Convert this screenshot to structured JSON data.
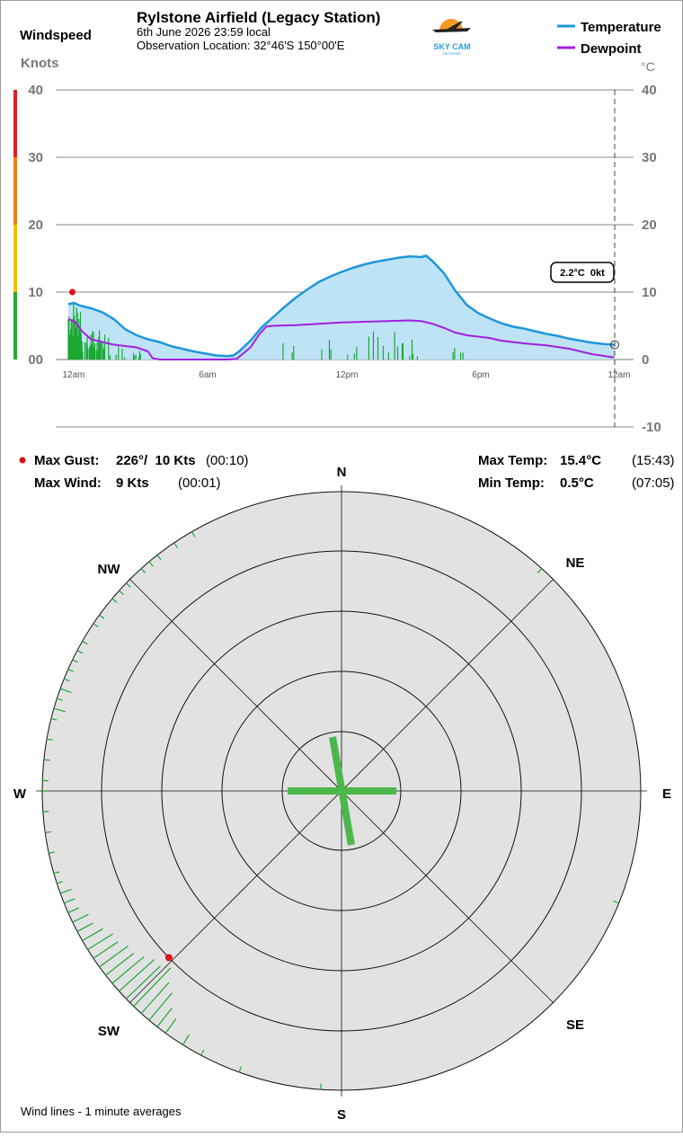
{
  "header": {
    "title": "Rylstone Airfield (Legacy Station)",
    "datetime": "6th June 2026  23:59 local",
    "location": "Observation Location: 32°46'S 150°00'E",
    "windspeed_label": "Windspeed",
    "knots_label": "Knots",
    "celsius_label": "°C"
  },
  "logo": {
    "text": "SKY CAM",
    "subtext": "NETWORK"
  },
  "legend": {
    "temperature": "Temperature",
    "dewpoint": "Dewpoint"
  },
  "colors": {
    "temperature": "#1e96dc",
    "dewpoint": "#a020e0",
    "temp_fill": "#bfe3f6",
    "wind": "#1aa832",
    "gust": "#dd1111",
    "scale_green": "#22aa33",
    "scale_yellow": "#f2c100",
    "scale_orange": "#ef7f1a",
    "scale_red": "#dd2222"
  },
  "chart_data": {
    "type": "line",
    "x_ticks": [
      "12am",
      "6am",
      "12pm",
      "6pm",
      "12am"
    ],
    "y_left_ticks": [
      "40",
      "30",
      "20",
      "10",
      "00"
    ],
    "y_right_ticks": [
      "40",
      "30",
      "20",
      "10",
      "0",
      "-10"
    ],
    "ylim": [
      -10,
      40
    ],
    "current_label": "2.2°C  0kt",
    "series": [
      {
        "name": "Temperature",
        "x": [
          0,
          0.25,
          0.5,
          1,
          1.5,
          2,
          2.5,
          3,
          3.5,
          4,
          4.5,
          5,
          5.5,
          6,
          6.5,
          7,
          7.25,
          7.5,
          8,
          8.5,
          9,
          9.5,
          10,
          10.5,
          11,
          11.5,
          12,
          12.5,
          13,
          13.5,
          14,
          14.5,
          15,
          15.5,
          15.72,
          16,
          16.5,
          17,
          17.5,
          18,
          18.5,
          19,
          19.5,
          20,
          20.5,
          21,
          21.5,
          22,
          22.5,
          23,
          23.5,
          23.98
        ],
        "y": [
          8.2,
          8.4,
          8.0,
          7.6,
          7.0,
          6.0,
          4.5,
          3.6,
          3.0,
          2.6,
          2.0,
          1.6,
          1.2,
          0.9,
          0.6,
          0.5,
          0.6,
          1.2,
          2.8,
          4.8,
          6.3,
          7.8,
          9.2,
          10.4,
          11.5,
          12.3,
          13.0,
          13.6,
          14.1,
          14.5,
          14.8,
          15.1,
          15.3,
          15.2,
          15.4,
          14.6,
          12.8,
          10.2,
          8.1,
          6.9,
          6.1,
          5.4,
          4.9,
          4.6,
          4.2,
          3.8,
          3.5,
          3.1,
          2.8,
          2.5,
          2.3,
          2.2
        ]
      },
      {
        "name": "Dewpoint",
        "x": [
          0,
          0.3,
          0.6,
          1,
          1.5,
          2,
          2.5,
          3,
          3.5,
          3.7,
          4,
          5,
          6,
          7,
          7.4,
          8,
          8.4,
          8.7,
          9,
          10,
          11,
          11.5,
          12,
          13,
          14,
          15,
          15.5,
          16,
          16.5,
          17,
          17.5,
          18,
          18.5,
          19,
          20,
          21,
          22,
          23,
          23.98
        ],
        "y": [
          6.0,
          5.6,
          4.2,
          3.0,
          2.6,
          2.2,
          2.0,
          1.8,
          1.2,
          0.2,
          0.0,
          0.0,
          0.0,
          0.0,
          0.1,
          1.8,
          3.8,
          4.9,
          5.0,
          5.1,
          5.3,
          5.4,
          5.5,
          5.6,
          5.7,
          5.8,
          5.7,
          5.3,
          4.7,
          4.0,
          3.6,
          3.4,
          3.2,
          2.8,
          2.4,
          2.1,
          1.6,
          0.8,
          0.3
        ]
      }
    ]
  },
  "stats": {
    "max_gust_label": "Max Gust:",
    "max_gust_value": "226°/  10 Kts",
    "max_gust_time": "(00:10)",
    "max_wind_label": "Max Wind:",
    "max_wind_value": "9 Kts",
    "max_wind_time": "(00:01)",
    "max_temp_label": "Max Temp:",
    "max_temp_value": "15.4°C",
    "max_temp_time": "(15:43)",
    "min_temp_label": "Min Temp:",
    "min_temp_value": "0.5°C",
    "min_temp_time": "(07:05)"
  },
  "rose": {
    "directions": {
      "n": "N",
      "ne": "NE",
      "e": "E",
      "se": "SE",
      "s": "S",
      "sw": "SW",
      "w": "W",
      "nw": "NW"
    },
    "calm_cross": true,
    "max_gust": {
      "direction_deg": 226,
      "speed_kt": 10
    },
    "wind_lines": [
      {
        "dir": 224,
        "kt": 9
      },
      {
        "dir": 226,
        "kt": 8
      },
      {
        "dir": 228,
        "kt": 8
      },
      {
        "dir": 222,
        "kt": 7
      },
      {
        "dir": 230,
        "kt": 7
      },
      {
        "dir": 232,
        "kt": 6
      },
      {
        "dir": 234,
        "kt": 6
      },
      {
        "dir": 220,
        "kt": 6
      },
      {
        "dir": 236,
        "kt": 5
      },
      {
        "dir": 238,
        "kt": 5
      },
      {
        "dir": 240,
        "kt": 4
      },
      {
        "dir": 242,
        "kt": 3
      },
      {
        "dir": 244,
        "kt": 3
      },
      {
        "dir": 218,
        "kt": 4
      },
      {
        "dir": 216,
        "kt": 3
      },
      {
        "dir": 246,
        "kt": 2
      },
      {
        "dir": 248,
        "kt": 2
      },
      {
        "dir": 250,
        "kt": 2
      },
      {
        "dir": 252,
        "kt": 1
      },
      {
        "dir": 254,
        "kt": 1
      },
      {
        "dir": 212,
        "kt": 2
      },
      {
        "dir": 208,
        "kt": 1
      },
      {
        "dir": 200,
        "kt": 1
      },
      {
        "dir": 258,
        "kt": 1
      },
      {
        "dir": 262,
        "kt": 1
      },
      {
        "dir": 266,
        "kt": 1
      },
      {
        "dir": 270,
        "kt": 1
      },
      {
        "dir": 272,
        "kt": 1
      },
      {
        "dir": 276,
        "kt": 1
      },
      {
        "dir": 280,
        "kt": 1
      },
      {
        "dir": 284,
        "kt": 1
      },
      {
        "dir": 286,
        "kt": 2
      },
      {
        "dir": 288,
        "kt": 1
      },
      {
        "dir": 290,
        "kt": 2
      },
      {
        "dir": 292,
        "kt": 1
      },
      {
        "dir": 294,
        "kt": 1
      },
      {
        "dir": 296,
        "kt": 1
      },
      {
        "dir": 298,
        "kt": 1
      },
      {
        "dir": 300,
        "kt": 1
      },
      {
        "dir": 304,
        "kt": 1
      },
      {
        "dir": 306,
        "kt": 1
      },
      {
        "dir": 310,
        "kt": 1
      },
      {
        "dir": 312,
        "kt": 1
      },
      {
        "dir": 314,
        "kt": 1
      },
      {
        "dir": 318,
        "kt": 1
      },
      {
        "dir": 320,
        "kt": 1
      },
      {
        "dir": 322,
        "kt": 1
      },
      {
        "dir": 326,
        "kt": 1
      },
      {
        "dir": 330,
        "kt": 1
      },
      {
        "dir": 42,
        "kt": 1
      },
      {
        "dir": 112,
        "kt": 1
      },
      {
        "dir": 184,
        "kt": 1
      }
    ]
  },
  "footer": {
    "note": "Wind lines - 1 minute averages"
  }
}
